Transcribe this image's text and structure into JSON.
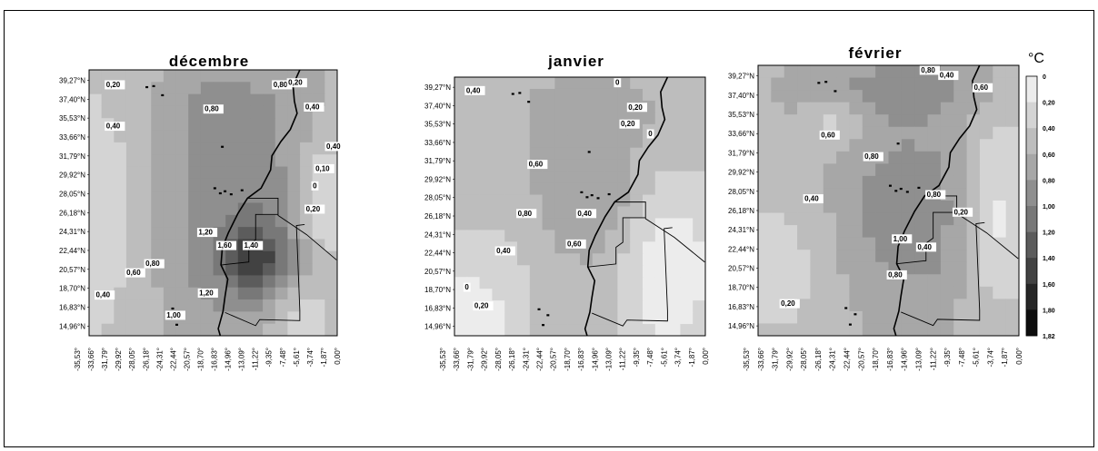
{
  "unit": "°C",
  "lat_labels": [
    "39,27°N",
    "37,40°N",
    "35,53°N",
    "33,66°N",
    "31,79°N",
    "29,92°N",
    "28,05°N",
    "26,18°N",
    "24,31°N",
    "22,44°N",
    "20,57°N",
    "18,70°N",
    "16,83°N",
    "14,96°N"
  ],
  "lon_labels": [
    "-35,53°",
    "-33,66°",
    "-31,79°",
    "-29,92°",
    "-28,05°",
    "-26,18°",
    "-24,31°",
    "-22,44°",
    "-20,57°",
    "-18,70°",
    "-16,83°",
    "-14,96°",
    "-13,09°",
    "-11,22°",
    "-9,35°",
    "-7,48°",
    "-5,61°",
    "-3,74°",
    "-1,87°",
    "0,00°"
  ],
  "legend": {
    "levels": [
      "0",
      "0,20",
      "0,40",
      "0,60",
      "0,80",
      "1,00",
      "1,20",
      "1,40",
      "1,60",
      "1,80",
      "1,82"
    ],
    "colors": [
      "#ececec",
      "#d4d4d4",
      "#bdbdbd",
      "#a7a7a7",
      "#8f8f8f",
      "#787878",
      "#5c5c5c",
      "#424242",
      "#262626",
      "#0d0d0d",
      "#000000"
    ]
  },
  "maps": [
    {
      "title": "décembre",
      "iso_labels": [
        {
          "text": "0,20",
          "lon": -34.0,
          "lat": 38.6
        },
        {
          "text": "0,80",
          "lon": -9.4,
          "lat": 38.6
        },
        {
          "text": "0,20",
          "lon": -7.2,
          "lat": 38.8
        },
        {
          "text": "0,80",
          "lon": -19.5,
          "lat": 36.2
        },
        {
          "text": "0,40",
          "lon": -4.7,
          "lat": 36.4
        },
        {
          "text": "0,40",
          "lon": -34.0,
          "lat": 34.5
        },
        {
          "text": "0,40",
          "lon": -1.6,
          "lat": 32.5
        },
        {
          "text": "0,10",
          "lon": -3.2,
          "lat": 30.3
        },
        {
          "text": "0",
          "lon": -3.6,
          "lat": 28.6
        },
        {
          "text": "0,20",
          "lon": -4.6,
          "lat": 26.3
        },
        {
          "text": "1,20",
          "lon": -20.4,
          "lat": 24.0
        },
        {
          "text": "1,60",
          "lon": -17.6,
          "lat": 22.7
        },
        {
          "text": "1,40",
          "lon": -13.7,
          "lat": 22.7
        },
        {
          "text": "0,80",
          "lon": -28.2,
          "lat": 20.9
        },
        {
          "text": "0,60",
          "lon": -31.0,
          "lat": 20.0
        },
        {
          "text": "0,40",
          "lon": -35.5,
          "lat": 17.8
        },
        {
          "text": "1,20",
          "lon": -20.3,
          "lat": 18.0
        },
        {
          "text": "1,00",
          "lon": -25.1,
          "lat": 15.8
        }
      ]
    },
    {
      "title": "janvier",
      "iso_labels": [
        {
          "text": "0,40",
          "lon": -34.8,
          "lat": 38.7
        },
        {
          "text": "0",
          "lon": -13.1,
          "lat": 39.5
        },
        {
          "text": "0,20",
          "lon": -11.2,
          "lat": 37.0
        },
        {
          "text": "0,20",
          "lon": -12.3,
          "lat": 35.3
        },
        {
          "text": "0",
          "lon": -8.3,
          "lat": 34.3
        },
        {
          "text": "0,60",
          "lon": -25.7,
          "lat": 31.2
        },
        {
          "text": "0,80",
          "lon": -27.3,
          "lat": 26.2
        },
        {
          "text": "0,40",
          "lon": -18.6,
          "lat": 26.2
        },
        {
          "text": "0,60",
          "lon": -20.1,
          "lat": 23.1
        },
        {
          "text": "0,40",
          "lon": -30.4,
          "lat": 22.4
        },
        {
          "text": "0",
          "lon": -35.0,
          "lat": 18.7
        },
        {
          "text": "0,20",
          "lon": -33.6,
          "lat": 16.8
        }
      ]
    },
    {
      "title": "février",
      "iso_labels": [
        {
          "text": "0,80",
          "lon": -13.7,
          "lat": 39.6
        },
        {
          "text": "0,40",
          "lon": -11.1,
          "lat": 39.1
        },
        {
          "text": "0,60",
          "lon": -6.3,
          "lat": 37.9
        },
        {
          "text": "0,60",
          "lon": -27.7,
          "lat": 33.3
        },
        {
          "text": "0,80",
          "lon": -21.6,
          "lat": 31.2
        },
        {
          "text": "0,40",
          "lon": -30.0,
          "lat": 27.1
        },
        {
          "text": "0,80",
          "lon": -12.9,
          "lat": 27.5
        },
        {
          "text": "0,20",
          "lon": -9.1,
          "lat": 25.8
        },
        {
          "text": "1,00",
          "lon": -17.6,
          "lat": 23.2
        },
        {
          "text": "0,40",
          "lon": -14.2,
          "lat": 22.4
        },
        {
          "text": "0,80",
          "lon": -18.3,
          "lat": 19.7
        },
        {
          "text": "0,20",
          "lon": -33.3,
          "lat": 16.9
        }
      ]
    }
  ]
}
